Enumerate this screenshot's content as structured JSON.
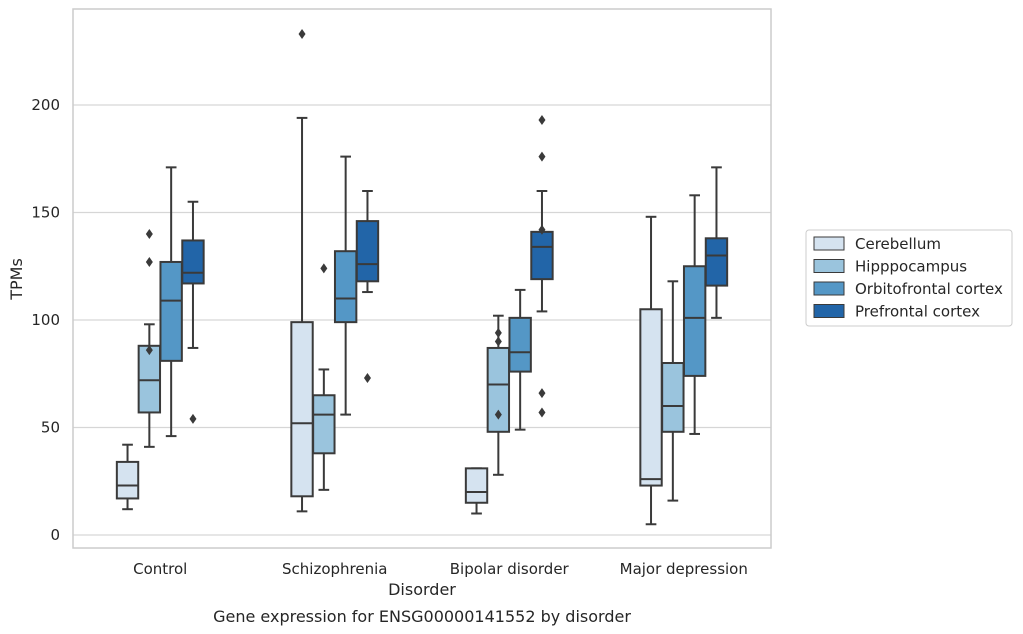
{
  "chart_data": {
    "type": "box",
    "caption": "Gene expression for ENSG00000141552 by disorder",
    "xlabel": "Disorder",
    "ylabel": "TPMs",
    "ylim": [
      -5,
      245
    ],
    "yticks": [
      0,
      50,
      100,
      150,
      200
    ],
    "grid": "horizontal",
    "legend_placement": "right",
    "categories": [
      "Control",
      "Schizophrenia",
      "Bipolar disorder",
      "Major depression"
    ],
    "series": [
      {
        "name": "Cerebellum",
        "color": "#d5e3f0",
        "boxes": [
          {
            "whislo": 12,
            "q1": 17,
            "med": 23,
            "q3": 34,
            "whishi": 42,
            "fliers": []
          },
          {
            "whislo": 11,
            "q1": 18,
            "med": 52,
            "q3": 99,
            "whishi": 194,
            "fliers": [
              233
            ]
          },
          {
            "whislo": 10,
            "q1": 15,
            "med": 20,
            "q3": 31,
            "whishi": 31,
            "fliers": []
          },
          {
            "whislo": 5,
            "q1": 23,
            "med": 26,
            "q3": 105,
            "whishi": 148,
            "fliers": []
          }
        ]
      },
      {
        "name": "Hipppocampus",
        "color": "#9ac4dd",
        "boxes": [
          {
            "whislo": 41,
            "q1": 57,
            "med": 72,
            "q3": 88,
            "whishi": 98,
            "fliers": [
              86,
              127,
              140
            ]
          },
          {
            "whislo": 21,
            "q1": 38,
            "med": 56,
            "q3": 65,
            "whishi": 77,
            "fliers": [
              124
            ]
          },
          {
            "whislo": 28,
            "q1": 48,
            "med": 70,
            "q3": 87,
            "whishi": 102,
            "fliers": [
              56,
              90,
              94
            ]
          },
          {
            "whislo": 16,
            "q1": 48,
            "med": 60,
            "q3": 80,
            "whishi": 118,
            "fliers": []
          }
        ]
      },
      {
        "name": "Orbitofrontal cortex",
        "color": "#5497c6",
        "boxes": [
          {
            "whislo": 46,
            "q1": 81,
            "med": 109,
            "q3": 127,
            "whishi": 171,
            "fliers": []
          },
          {
            "whislo": 56,
            "q1": 99,
            "med": 110,
            "q3": 132,
            "whishi": 176,
            "fliers": []
          },
          {
            "whislo": 49,
            "q1": 76,
            "med": 85,
            "q3": 101,
            "whishi": 114,
            "fliers": []
          },
          {
            "whislo": 47,
            "q1": 74,
            "med": 101,
            "q3": 125,
            "whishi": 158,
            "fliers": []
          }
        ]
      },
      {
        "name": "Prefrontal cortex",
        "color": "#2265a8",
        "boxes": [
          {
            "whislo": 87,
            "q1": 117,
            "med": 122,
            "q3": 137,
            "whishi": 155,
            "fliers": [
              54
            ]
          },
          {
            "whislo": 113,
            "q1": 118,
            "med": 126,
            "q3": 146,
            "whishi": 160,
            "fliers": [
              73
            ]
          },
          {
            "whislo": 104,
            "q1": 119,
            "med": 134,
            "q3": 141,
            "whishi": 160,
            "fliers": [
              57,
              66,
              142,
              176,
              193
            ]
          },
          {
            "whislo": 101,
            "q1": 116,
            "med": 130,
            "q3": 138,
            "whishi": 171,
            "fliers": []
          }
        ]
      }
    ]
  }
}
